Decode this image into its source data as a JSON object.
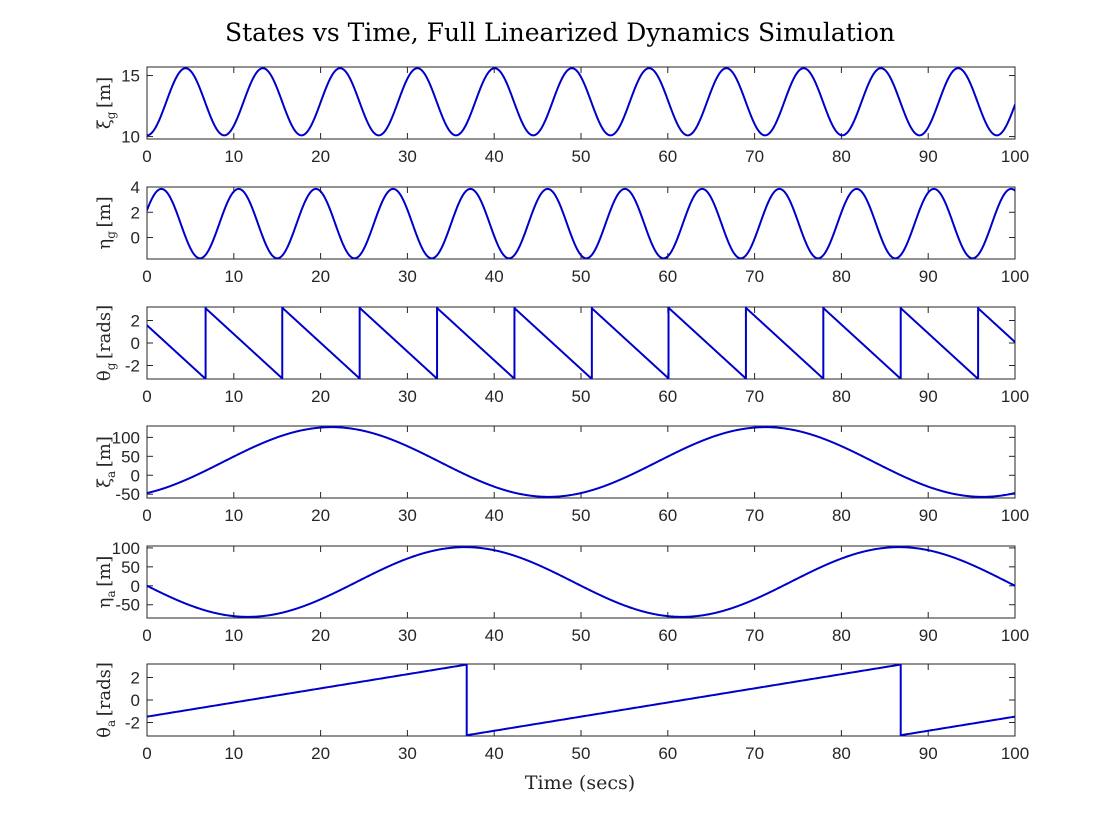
{
  "title": "States vs Time, Full Linearized Dynamics Simulation",
  "xlabel": "Time (secs)",
  "line_color": "#0000cc",
  "chart_data": [
    {
      "type": "line",
      "ylabel": {
        "main": "ξ",
        "sub": "g",
        "unit": "[m]"
      },
      "xlim": [
        0,
        100
      ],
      "ylim": [
        9.8,
        15.7
      ],
      "xticks": [
        0,
        10,
        20,
        30,
        40,
        50,
        60,
        70,
        80,
        90,
        100
      ],
      "yticks": [
        10,
        15
      ],
      "series": [
        {
          "kind": "sine",
          "offset": 12.85,
          "amplitude": 2.75,
          "period": 8.9,
          "phase": -1.5708,
          "t0": 0,
          "t1": 100
        }
      ]
    },
    {
      "type": "line",
      "ylabel": {
        "main": "η",
        "sub": "g",
        "unit": "[m]"
      },
      "xlim": [
        0,
        100
      ],
      "ylim": [
        -1.7,
        4.0
      ],
      "xticks": [
        0,
        10,
        20,
        30,
        40,
        50,
        60,
        70,
        80,
        90,
        100
      ],
      "yticks": [
        0,
        2,
        4
      ],
      "series": [
        {
          "kind": "sine",
          "offset": 1.1,
          "amplitude": 2.75,
          "period": 8.9,
          "phase": 0.4,
          "t0": 0,
          "t1": 100
        }
      ]
    },
    {
      "type": "line",
      "ylabel": {
        "main": "θ",
        "sub": "g",
        "unit": "[rads]"
      },
      "xlim": [
        0,
        100
      ],
      "ylim": [
        -3.2,
        3.2
      ],
      "xticks": [
        0,
        10,
        20,
        30,
        40,
        50,
        60,
        70,
        80,
        90,
        100
      ],
      "yticks": [
        -2,
        0,
        2
      ],
      "series": [
        {
          "kind": "wrap",
          "start": 1.5708,
          "rate": -0.706,
          "low": -3.1416,
          "high": 3.1416,
          "t0": 0,
          "t1": 100
        }
      ]
    },
    {
      "type": "line",
      "ylabel": {
        "main": "ξ",
        "sub": "a",
        "unit": "[m]"
      },
      "xlim": [
        0,
        100
      ],
      "ylim": [
        -60,
        130
      ],
      "xticks": [
        0,
        10,
        20,
        30,
        40,
        50,
        60,
        70,
        80,
        90,
        100
      ],
      "yticks": [
        -50,
        0,
        50,
        100
      ],
      "series": [
        {
          "kind": "sine",
          "offset": 35,
          "amplitude": 92,
          "period": 50,
          "phase": -1.1,
          "t0": 0,
          "t1": 100
        }
      ]
    },
    {
      "type": "line",
      "ylabel": {
        "main": "η",
        "sub": "a",
        "unit": "[m]"
      },
      "xlim": [
        0,
        100
      ],
      "ylim": [
        -85,
        105
      ],
      "xticks": [
        0,
        10,
        20,
        30,
        40,
        50,
        60,
        70,
        80,
        90,
        100
      ],
      "yticks": [
        -50,
        0,
        50,
        100
      ],
      "series": [
        {
          "kind": "sine",
          "offset": 10,
          "amplitude": 92,
          "period": 50,
          "phase": 3.25,
          "t0": 0,
          "t1": 100
        }
      ]
    },
    {
      "type": "line",
      "ylabel": {
        "main": "θ",
        "sub": "a",
        "unit": "[rads]"
      },
      "xlim": [
        0,
        100
      ],
      "ylim": [
        -3.2,
        3.2
      ],
      "xticks": [
        0,
        10,
        20,
        30,
        40,
        50,
        60,
        70,
        80,
        90,
        100
      ],
      "yticks": [
        -2,
        0,
        2
      ],
      "series": [
        {
          "kind": "wrap",
          "start": -1.48,
          "rate": 0.1257,
          "low": -3.1416,
          "high": 3.1416,
          "t0": 0,
          "t1": 100
        }
      ]
    }
  ]
}
